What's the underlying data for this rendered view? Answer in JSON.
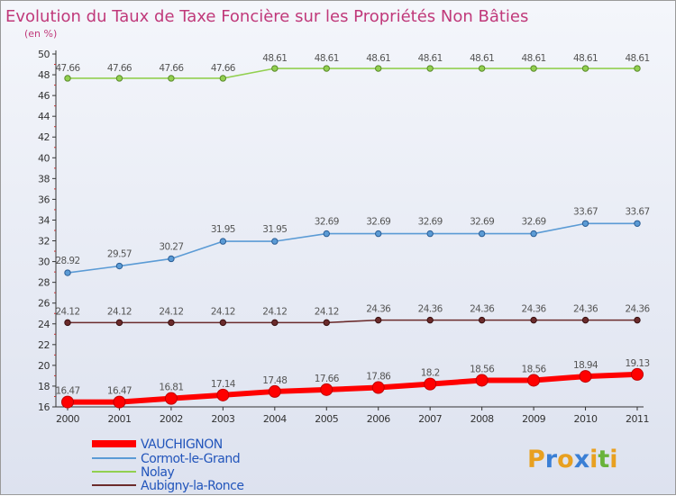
{
  "chart_data": {
    "type": "line",
    "title": "Evolution du Taux de Taxe Foncière sur les Propriétés Non Bâties",
    "subtitle": "(en %)",
    "x": [
      "2000",
      "2001",
      "2002",
      "2003",
      "2004",
      "2005",
      "2006",
      "2007",
      "2008",
      "2009",
      "2010",
      "2011"
    ],
    "ylim": [
      16,
      50
    ],
    "y_ticks": [
      16,
      18,
      20,
      22,
      24,
      26,
      28,
      30,
      32,
      34,
      36,
      38,
      40,
      42,
      44,
      46,
      48,
      50
    ],
    "grid": false,
    "legend_position": "bottom-left",
    "series": [
      {
        "name": "VAUCHIGNON",
        "color": "#ff0000",
        "values": [
          16.47,
          16.47,
          16.81,
          17.14,
          17.48,
          17.66,
          17.86,
          18.2,
          18.56,
          18.56,
          18.94,
          19.13
        ],
        "labels": [
          "16.47",
          "16.47",
          "16.81",
          "17.14",
          "17.48",
          "17.66",
          "17.86",
          "18.2",
          "18.56",
          "18.56",
          "18.94",
          "19.13"
        ]
      },
      {
        "name": "Cormot-le-Grand",
        "color": "#5b9bd5",
        "values": [
          28.92,
          29.57,
          30.27,
          31.95,
          31.95,
          32.69,
          32.69,
          32.69,
          32.69,
          32.69,
          33.67,
          33.67
        ],
        "labels": [
          "28.92",
          "29.57",
          "30.27",
          "31.95",
          "31.95",
          "32.69",
          "32.69",
          "32.69",
          "32.69",
          "32.69",
          "33.67",
          "33.67"
        ]
      },
      {
        "name": "Nolay",
        "color": "#92d050",
        "values": [
          47.66,
          47.66,
          47.66,
          47.66,
          48.61,
          48.61,
          48.61,
          48.61,
          48.61,
          48.61,
          48.61,
          48.61
        ],
        "labels": [
          "47.66",
          "47.66",
          "47.66",
          "47.66",
          "48.61",
          "48.61",
          "48.61",
          "48.61",
          "48.61",
          "48.61",
          "48.61",
          "48.61"
        ]
      },
      {
        "name": "Aubigny-la-Ronce",
        "color": "#6b2b2b",
        "values": [
          24.12,
          24.12,
          24.12,
          24.12,
          24.12,
          24.12,
          24.36,
          24.36,
          24.36,
          24.36,
          24.36,
          24.36
        ],
        "labels": [
          "24.12",
          "24.12",
          "24.12",
          "24.12",
          "24.12",
          "24.12",
          "24.36",
          "24.36",
          "24.36",
          "24.36",
          "24.36",
          "24.36"
        ]
      }
    ]
  },
  "logo": {
    "text": "Proxiti"
  }
}
